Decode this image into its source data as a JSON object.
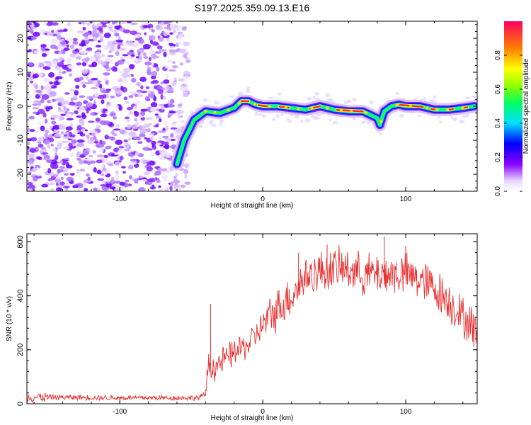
{
  "chart_data": [
    {
      "type": "heatmap",
      "title": "S197.2025.359.09.13.E16",
      "xlabel": "Height of straight line (km)",
      "ylabel": "Frequency (Hz)",
      "xlim": [
        -165,
        150
      ],
      "ylim": [
        -25,
        25
      ],
      "xticks": [
        -100,
        0,
        100
      ],
      "yticks": [
        -20,
        -10,
        0,
        10,
        20
      ],
      "colorbar": {
        "label": "Normalized spectral amplitude",
        "range": [
          0,
          1
        ],
        "ticks": [
          0.0,
          0.2,
          0.4,
          0.6,
          0.8
        ]
      },
      "ridge": {
        "x": [
          -60,
          -55,
          -48,
          -40,
          -30,
          -20,
          -15,
          -10,
          -5,
          0,
          10,
          20,
          30,
          40,
          50,
          60,
          70,
          75,
          80,
          82,
          85,
          90,
          95,
          100,
          110,
          120,
          130,
          140,
          148
        ],
        "y": [
          -17,
          -10,
          -4,
          -1.5,
          -2,
          -0.5,
          1.5,
          1.5,
          0.5,
          0,
          0,
          -0.5,
          -1,
          0,
          -1,
          -1.5,
          -1.5,
          -2.5,
          -3.5,
          -5.5,
          -1.5,
          0,
          0.5,
          0,
          0,
          -1,
          -1,
          -0.5,
          0
        ]
      },
      "noise_region": {
        "x_range": [
          -165,
          -52
        ],
        "y_range": [
          -25,
          25
        ]
      }
    },
    {
      "type": "line",
      "title": "",
      "xlabel": "Height of straight line (km)",
      "ylabel": "SNR (10 * v/v)",
      "xlim": [
        -165,
        150
      ],
      "ylim": [
        0,
        630
      ],
      "xticks": [
        -100,
        0,
        100
      ],
      "yticks": [
        0,
        200,
        400,
        600
      ],
      "series": [
        {
          "name": "SNR",
          "color": "#e8302f",
          "envelope": {
            "x": [
              -165,
              -100,
              -45,
              -40,
              -38,
              -35,
              -30,
              -20,
              -10,
              0,
              10,
              20,
              30,
              40,
              50,
              60,
              70,
              80,
              90,
              100,
              110,
              120,
              130,
              140,
              150
            ],
            "y": [
              25,
              22,
              22,
              35,
              150,
              130,
              150,
              190,
              220,
              290,
              350,
              400,
              470,
              490,
              500,
              500,
              480,
              480,
              480,
              480,
              460,
              430,
              380,
              320,
              270
            ]
          },
          "spikes": [
            [
              -36.5,
              370
            ],
            [
              45,
              590
            ],
            [
              85,
              620
            ],
            [
              100,
              585
            ],
            [
              25,
              560
            ]
          ]
        }
      ]
    }
  ]
}
